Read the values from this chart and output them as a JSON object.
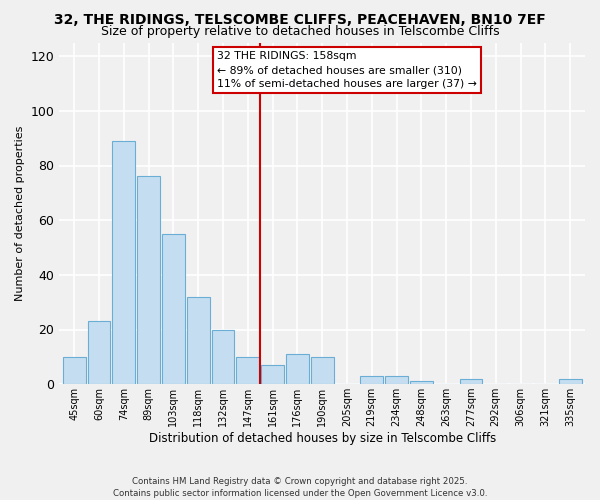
{
  "title": "32, THE RIDINGS, TELSCOMBE CLIFFS, PEACEHAVEN, BN10 7EF",
  "subtitle": "Size of property relative to detached houses in Telscombe Cliffs",
  "xlabel": "Distribution of detached houses by size in Telscombe Cliffs",
  "ylabel": "Number of detached properties",
  "bin_labels": [
    "45sqm",
    "60sqm",
    "74sqm",
    "89sqm",
    "103sqm",
    "118sqm",
    "132sqm",
    "147sqm",
    "161sqm",
    "176sqm",
    "190sqm",
    "205sqm",
    "219sqm",
    "234sqm",
    "248sqm",
    "263sqm",
    "277sqm",
    "292sqm",
    "306sqm",
    "321sqm",
    "335sqm"
  ],
  "bar_heights": [
    10,
    23,
    89,
    76,
    55,
    32,
    20,
    10,
    7,
    11,
    10,
    0,
    3,
    3,
    1,
    0,
    2,
    0,
    0,
    0,
    2
  ],
  "bar_color": "#c5ddf0",
  "bar_edge_color": "#6aaed6",
  "vline_index": 8,
  "vline_color": "#cc0000",
  "ylim": [
    0,
    125
  ],
  "yticks": [
    0,
    20,
    40,
    60,
    80,
    100,
    120
  ],
  "annotation_title": "32 THE RIDINGS: 158sqm",
  "annotation_line1": "← 89% of detached houses are smaller (310)",
  "annotation_line2": "11% of semi-detached houses are larger (37) →",
  "footer1": "Contains HM Land Registry data © Crown copyright and database right 2025.",
  "footer2": "Contains public sector information licensed under the Open Government Licence v3.0.",
  "bg_color": "#f0f0f0",
  "grid_color": "#ffffff",
  "title_fontsize": 10,
  "subtitle_fontsize": 9
}
